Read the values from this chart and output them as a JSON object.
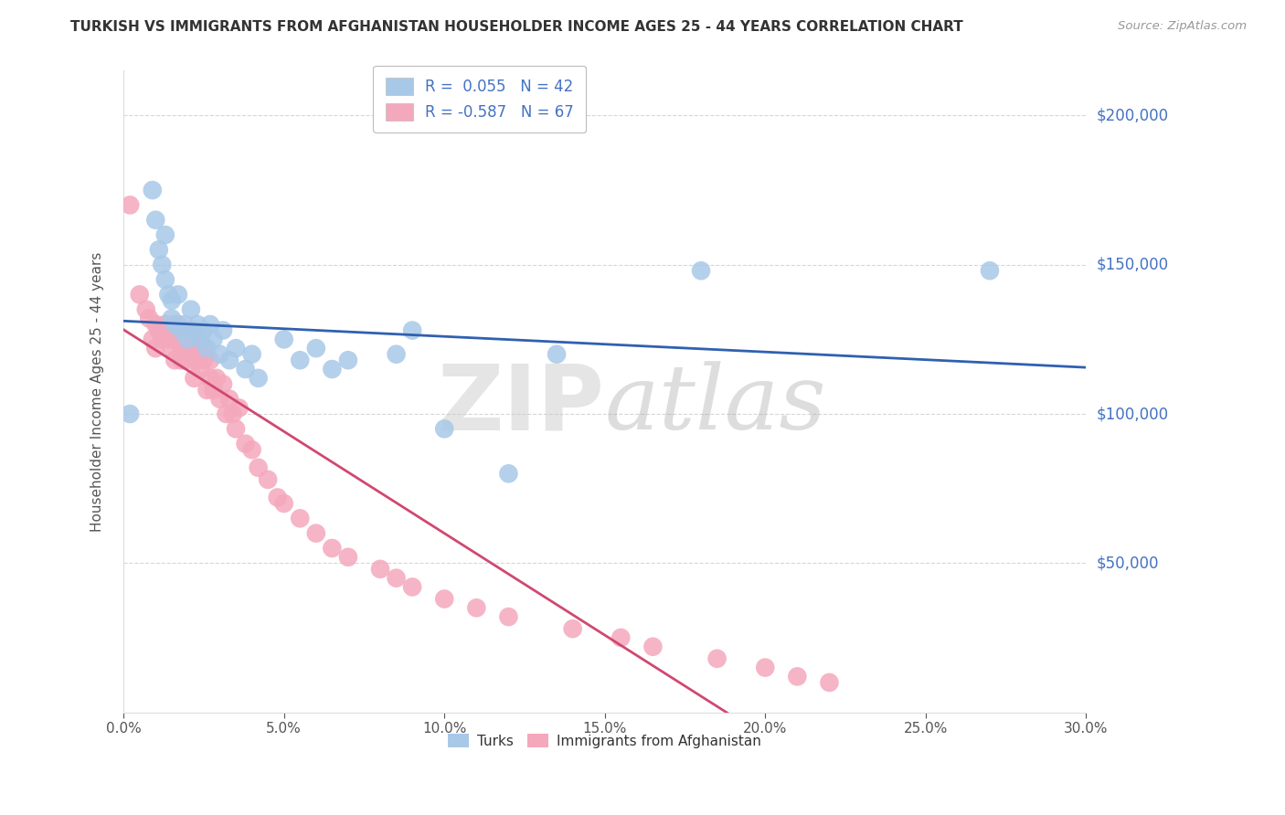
{
  "title": "TURKISH VS IMMIGRANTS FROM AFGHANISTAN HOUSEHOLDER INCOME AGES 25 - 44 YEARS CORRELATION CHART",
  "source": "Source: ZipAtlas.com",
  "ylabel": "Householder Income Ages 25 - 44 years",
  "xlim": [
    0.0,
    0.3
  ],
  "ylim": [
    0,
    215000
  ],
  "xticks": [
    0.0,
    0.05,
    0.1,
    0.15,
    0.2,
    0.25,
    0.3
  ],
  "xticklabels": [
    "0.0%",
    "5.0%",
    "10.0%",
    "15.0%",
    "20.0%",
    "25.0%",
    "30.0%"
  ],
  "ytick_positions": [
    50000,
    100000,
    150000,
    200000
  ],
  "ytick_labels": [
    "$50,000",
    "$100,000",
    "$150,000",
    "$200,000"
  ],
  "turks_color": "#a8c8e8",
  "afghan_color": "#f4a8bc",
  "turks_line_color": "#3060b0",
  "afghan_line_color": "#d04870",
  "watermark_color": "#d8d8d8",
  "background_color": "#ffffff",
  "grid_color": "#cccccc",
  "yaxis_label_color": "#4472c4",
  "title_color": "#333333",
  "source_color": "#999999",
  "turks_x": [
    0.002,
    0.009,
    0.01,
    0.011,
    0.012,
    0.013,
    0.013,
    0.014,
    0.015,
    0.015,
    0.016,
    0.017,
    0.018,
    0.019,
    0.02,
    0.021,
    0.022,
    0.023,
    0.024,
    0.025,
    0.026,
    0.027,
    0.028,
    0.03,
    0.031,
    0.033,
    0.035,
    0.038,
    0.04,
    0.042,
    0.05,
    0.055,
    0.06,
    0.065,
    0.07,
    0.085,
    0.09,
    0.1,
    0.12,
    0.135,
    0.18,
    0.27
  ],
  "turks_y": [
    100000,
    175000,
    165000,
    155000,
    150000,
    160000,
    145000,
    140000,
    138000,
    132000,
    130000,
    140000,
    128000,
    130000,
    125000,
    135000,
    128000,
    130000,
    125000,
    128000,
    122000,
    130000,
    125000,
    120000,
    128000,
    118000,
    122000,
    115000,
    120000,
    112000,
    125000,
    118000,
    122000,
    115000,
    118000,
    120000,
    128000,
    95000,
    80000,
    120000,
    148000,
    148000
  ],
  "afghan_x": [
    0.002,
    0.005,
    0.007,
    0.008,
    0.009,
    0.01,
    0.01,
    0.011,
    0.012,
    0.013,
    0.014,
    0.015,
    0.015,
    0.016,
    0.016,
    0.017,
    0.017,
    0.018,
    0.018,
    0.019,
    0.019,
    0.02,
    0.02,
    0.021,
    0.021,
    0.022,
    0.022,
    0.023,
    0.023,
    0.024,
    0.025,
    0.025,
    0.026,
    0.027,
    0.027,
    0.028,
    0.029,
    0.03,
    0.031,
    0.032,
    0.033,
    0.034,
    0.035,
    0.036,
    0.038,
    0.04,
    0.042,
    0.045,
    0.048,
    0.05,
    0.055,
    0.06,
    0.065,
    0.07,
    0.08,
    0.085,
    0.09,
    0.1,
    0.11,
    0.12,
    0.14,
    0.155,
    0.165,
    0.185,
    0.2,
    0.21,
    0.22
  ],
  "afghan_y": [
    170000,
    140000,
    135000,
    132000,
    125000,
    130000,
    122000,
    128000,
    125000,
    130000,
    125000,
    122000,
    128000,
    125000,
    118000,
    125000,
    130000,
    122000,
    118000,
    125000,
    118000,
    122000,
    128000,
    120000,
    118000,
    125000,
    112000,
    118000,
    120000,
    115000,
    118000,
    122000,
    108000,
    112000,
    118000,
    108000,
    112000,
    105000,
    110000,
    100000,
    105000,
    100000,
    95000,
    102000,
    90000,
    88000,
    82000,
    78000,
    72000,
    70000,
    65000,
    60000,
    55000,
    52000,
    48000,
    45000,
    42000,
    38000,
    35000,
    32000,
    28000,
    25000,
    22000,
    18000,
    15000,
    12000,
    10000
  ]
}
